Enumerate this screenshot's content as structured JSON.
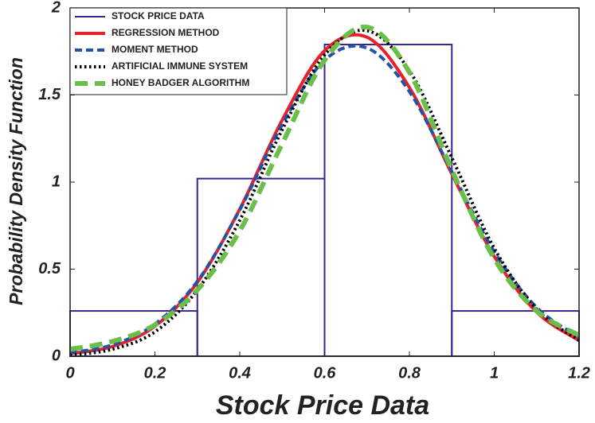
{
  "chart_data": {
    "type": "histogram",
    "xlabel": "Stock Price Data",
    "ylabel": "Probability Density Function",
    "histogram": {
      "name": "STOCK PRICE DATA",
      "color": "#3b2590",
      "bins": [
        0,
        0.3,
        0.6,
        0.9,
        1.2
      ],
      "values": [
        0.26,
        1.02,
        1.79,
        0.26
      ]
    },
    "x": [
      0,
      0.1,
      0.2,
      0.3,
      0.4,
      0.5,
      0.6,
      0.7,
      0.8,
      0.9,
      1.0,
      1.1,
      1.2
    ],
    "series": [
      {
        "name": "REGRESSION METHOD",
        "color": "#e8202a",
        "style": "solid",
        "values": [
          0.015,
          0.056,
          0.172,
          0.424,
          0.845,
          1.356,
          1.755,
          1.832,
          1.543,
          1.047,
          0.573,
          0.253,
          0.09
        ]
      },
      {
        "name": "MOMENT METHOD",
        "color": "#2453a6",
        "style": "dashed",
        "values": [
          0.02,
          0.065,
          0.185,
          0.43,
          0.84,
          1.33,
          1.7,
          1.77,
          1.52,
          1.06,
          0.6,
          0.28,
          0.11
        ]
      },
      {
        "name": "ARTIFICIAL IMMUNE SYSTEM",
        "color": "#000000",
        "style": "dotted",
        "values": [
          0.005,
          0.04,
          0.14,
          0.38,
          0.78,
          1.3,
          1.73,
          1.87,
          1.64,
          1.14,
          0.62,
          0.27,
          0.09
        ]
      },
      {
        "name": "HONEY BADGER ALGORITHM",
        "color": "#6abf4b",
        "style": "longdash",
        "values": [
          0.04,
          0.085,
          0.18,
          0.38,
          0.72,
          1.22,
          1.7,
          1.89,
          1.63,
          1.07,
          0.56,
          0.26,
          0.12
        ]
      }
    ],
    "xlim": [
      0,
      1.2
    ],
    "ylim": [
      0,
      2
    ],
    "xticks": [
      0,
      0.2,
      0.4,
      0.6,
      0.8,
      1,
      1.2
    ],
    "yticks": [
      0,
      0.5,
      1,
      1.5,
      2
    ],
    "legend": "upper-left"
  }
}
